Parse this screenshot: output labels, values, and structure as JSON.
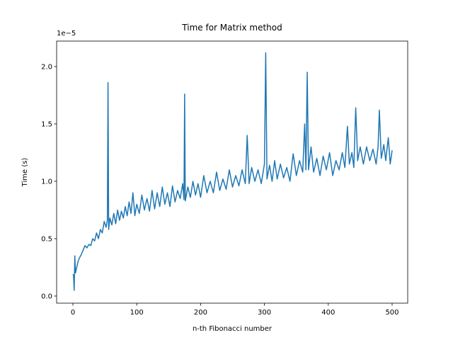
{
  "chart_data": {
    "type": "line",
    "title": "Time for Matrix method",
    "x_label": "n-th Fibonacci number",
    "y_label": "Time (s)",
    "y_offset_text": "1e−5",
    "color": "#1f77b4",
    "x": [
      0,
      1,
      2,
      3,
      4,
      6,
      8,
      10,
      13,
      16,
      19,
      22,
      25,
      28,
      31,
      34,
      37,
      40,
      43,
      46,
      49,
      52,
      54,
      55,
      56,
      58,
      61,
      64,
      67,
      70,
      73,
      76,
      79,
      82,
      85,
      88,
      91,
      94,
      97,
      100,
      104,
      108,
      112,
      116,
      120,
      124,
      128,
      132,
      136,
      140,
      144,
      148,
      152,
      156,
      160,
      164,
      168,
      172,
      174,
      175,
      176,
      180,
      184,
      188,
      192,
      196,
      200,
      205,
      210,
      215,
      220,
      225,
      230,
      235,
      240,
      245,
      250,
      255,
      260,
      265,
      270,
      273,
      276,
      280,
      285,
      290,
      295,
      300,
      302,
      304,
      308,
      312,
      316,
      320,
      325,
      330,
      335,
      340,
      345,
      350,
      355,
      360,
      363,
      365,
      367,
      369,
      373,
      377,
      382,
      387,
      392,
      397,
      402,
      407,
      412,
      417,
      422,
      426,
      430,
      433,
      437,
      440,
      443,
      446,
      450,
      455,
      460,
      465,
      470,
      475,
      478,
      480,
      483,
      487,
      490,
      494,
      497,
      500
    ],
    "values": [
      0.19,
      0.18,
      0.05,
      0.35,
      0.2,
      0.25,
      0.3,
      0.33,
      0.36,
      0.4,
      0.44,
      0.42,
      0.45,
      0.44,
      0.5,
      0.48,
      0.55,
      0.5,
      0.58,
      0.55,
      0.65,
      0.6,
      0.66,
      1.86,
      0.58,
      0.68,
      0.62,
      0.72,
      0.63,
      0.75,
      0.66,
      0.74,
      0.68,
      0.78,
      0.7,
      0.82,
      0.72,
      0.9,
      0.7,
      0.8,
      0.72,
      0.88,
      0.75,
      0.85,
      0.74,
      0.92,
      0.76,
      0.9,
      0.78,
      0.95,
      0.8,
      0.9,
      0.78,
      0.96,
      0.82,
      0.92,
      0.85,
      0.98,
      0.84,
      1.76,
      0.83,
      0.95,
      0.86,
      1.0,
      0.88,
      0.98,
      0.86,
      1.05,
      0.9,
      1.0,
      0.9,
      1.08,
      0.92,
      1.02,
      0.93,
      1.1,
      0.95,
      1.05,
      0.96,
      1.1,
      0.98,
      1.4,
      0.98,
      1.12,
      1.0,
      1.1,
      0.98,
      1.15,
      2.12,
      1.02,
      1.14,
      1.0,
      1.18,
      1.02,
      1.15,
      1.03,
      1.12,
      1.0,
      1.24,
      1.05,
      1.18,
      1.08,
      1.5,
      1.1,
      1.95,
      1.1,
      1.3,
      1.08,
      1.2,
      1.05,
      1.22,
      1.1,
      1.25,
      1.05,
      1.18,
      1.1,
      1.25,
      1.12,
      1.48,
      1.15,
      1.25,
      1.12,
      1.64,
      1.18,
      1.3,
      1.15,
      1.3,
      1.18,
      1.28,
      1.15,
      1.3,
      1.62,
      1.2,
      1.32,
      1.18,
      1.38,
      1.15,
      1.27
    ],
    "xlim": [
      -25.5,
      524.4
    ],
    "ylim": [
      -0.062,
      2.222
    ],
    "xticks": [
      0,
      100,
      200,
      300,
      400,
      500
    ],
    "yticks": [
      {
        "value": 0,
        "label": "0.0"
      },
      0.5,
      {
        "value": 1,
        "label": "1.0"
      },
      1.5,
      {
        "value": 2,
        "label": "2.0"
      }
    ]
  }
}
